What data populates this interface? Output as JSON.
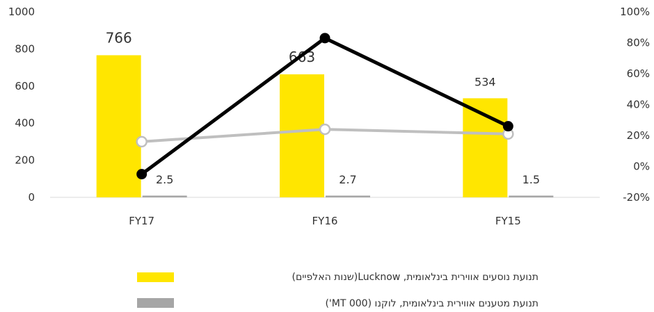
{
  "chart_data": {
    "type": "bar",
    "categories": [
      "FY17",
      "FY16",
      "FY15"
    ],
    "series": [
      {
        "name": "תנועת נוסעים אווירית בינלאומית, Lucknow(שנות האלפיים)",
        "kind": "bar",
        "axis": "left",
        "color": "#FFE600",
        "values": [
          766,
          663,
          534
        ],
        "labels": [
          "766",
          "663",
          "534"
        ]
      },
      {
        "name": "תנועת מטענים אווירית בינלאומית, לוקנו (MT 000')",
        "kind": "bar",
        "axis": "left",
        "color": "#A6A6A6",
        "values": [
          2.5,
          2.7,
          1.5
        ],
        "labels": [
          "2.5",
          "2.7",
          "1.5"
        ]
      },
      {
        "kind": "line",
        "axis": "right",
        "color": "#000000",
        "values": [
          -5,
          83,
          26
        ]
      },
      {
        "kind": "line",
        "axis": "right",
        "color": "#BFBFBF",
        "values": [
          16,
          24,
          21
        ]
      }
    ],
    "y_left": {
      "min": 0,
      "max": 1000,
      "ticks": [
        "0",
        "200",
        "400",
        "600",
        "800",
        "1000"
      ]
    },
    "y_right": {
      "min": -20,
      "max": 100,
      "ticks": [
        "-20%",
        "0%",
        "20%",
        "40%",
        "60%",
        "80%",
        "100%"
      ]
    },
    "legend_position": "bottom",
    "grid": false
  }
}
